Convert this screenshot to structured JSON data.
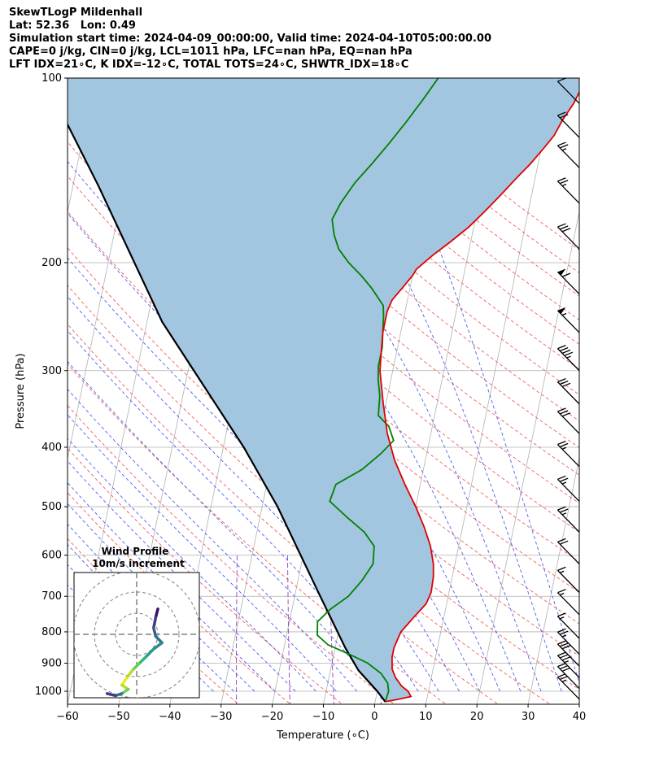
{
  "header": {
    "line1": "SkewTLogP Mildenhall",
    "line2": "Lat: 52.36   Lon: 0.49",
    "line3": "Simulation start time: 2024-04-09_00:00:00, Valid time: 2024-04-10T05:00:00.00",
    "line4": "CAPE=0 j/kg, CIN=0 j/kg, LCL=1011 hPa, LFC=nan hPa, EQ=nan hPa",
    "line5": "LFT IDX=21∘C, K IDX=-12∘C, TOTAL TOTS=24∘C, SHWTR_IDX=18∘C"
  },
  "chart_data": [
    {
      "type": "line",
      "subtype": "skew-t log-p",
      "xlabel": "Temperature (∘C)",
      "ylabel": "Pressure (hPa)",
      "xlim": [
        -60,
        40
      ],
      "ylim": [
        1050,
        100
      ],
      "yscale": "log",
      "xticks": [
        -60,
        -50,
        -40,
        -30,
        -20,
        -10,
        0,
        10,
        20,
        30,
        40
      ],
      "yticks": [
        100,
        200,
        300,
        400,
        500,
        600,
        700,
        800,
        900,
        1000
      ],
      "grid": true,
      "colors": {
        "temperature": "#e00000",
        "dewpoint": "#008000",
        "parcel": "#000000",
        "cin_cape_fill": "#a3c6e0",
        "isotherm": "#b0b0b0",
        "dry_adiabat": "#f06060",
        "moist_adiabat": "#5060ee",
        "mixing_ratio": "#9040c0"
      },
      "series": [
        {
          "role": "temperature",
          "points": [
            [
              2,
              1040
            ],
            [
              4.5,
              1030
            ],
            [
              6.8,
              1020
            ],
            [
              6,
              1000
            ],
            [
              4.5,
              980
            ],
            [
              3,
              950
            ],
            [
              2,
              920
            ],
            [
              1.5,
              880
            ],
            [
              1.5,
              850
            ],
            [
              2.2,
              800
            ],
            [
              4,
              760
            ],
            [
              6,
              720
            ],
            [
              6.5,
              690
            ],
            [
              6.3,
              650
            ],
            [
              5.8,
              620
            ],
            [
              4.5,
              580
            ],
            [
              2.5,
              540
            ],
            [
              0,
              500
            ],
            [
              -3,
              460
            ],
            [
              -6,
              420
            ],
            [
              -8.5,
              380
            ],
            [
              -10.5,
              340
            ],
            [
              -12.5,
              300
            ],
            [
              -13,
              280
            ],
            [
              -13.5,
              260
            ],
            [
              -13.5,
              240
            ],
            [
              -13,
              230
            ],
            [
              -11.5,
              220
            ],
            [
              -10,
              210
            ],
            [
              -9.5,
              205
            ],
            [
              -7,
              195
            ],
            [
              -4,
              185
            ],
            [
              -1,
              175
            ],
            [
              1.5,
              165
            ],
            [
              4,
              155
            ],
            [
              6.5,
              145
            ],
            [
              8.5,
              138
            ],
            [
              10.5,
              130
            ],
            [
              12,
              124
            ],
            [
              13,
              117
            ],
            [
              14.5,
              110
            ],
            [
              15.5,
              103
            ],
            [
              16,
              100
            ]
          ]
        },
        {
          "role": "dewpoint",
          "points": [
            [
              2,
              1035
            ],
            [
              2.2,
              1000
            ],
            [
              1.7,
              970
            ],
            [
              0,
              935
            ],
            [
              -3,
              900
            ],
            [
              -7,
              870
            ],
            [
              -11.5,
              840
            ],
            [
              -14,
              810
            ],
            [
              -14.5,
              770
            ],
            [
              -12.5,
              735
            ],
            [
              -9.5,
              700
            ],
            [
              -7.5,
              660
            ],
            [
              -6,
              620
            ],
            [
              -6.5,
              580
            ],
            [
              -9,
              550
            ],
            [
              -13,
              520
            ],
            [
              -17,
              490
            ],
            [
              -16.5,
              460
            ],
            [
              -12,
              435
            ],
            [
              -9,
              410
            ],
            [
              -7,
              390
            ],
            [
              -8.5,
              370
            ],
            [
              -11,
              355
            ],
            [
              -11.5,
              330
            ],
            [
              -12.5,
              310
            ],
            [
              -13,
              295
            ],
            [
              -13,
              275
            ],
            [
              -13.5,
              260
            ],
            [
              -14,
              245
            ],
            [
              -14.5,
              235
            ],
            [
              -17.5,
              220
            ],
            [
              -20,
              210
            ],
            [
              -23,
              200
            ],
            [
              -25.5,
              190
            ],
            [
              -27,
              180
            ],
            [
              -28,
              170
            ],
            [
              -27,
              160
            ],
            [
              -25,
              148
            ],
            [
              -22.5,
              138
            ],
            [
              -20,
              128
            ],
            [
              -17.5,
              118
            ],
            [
              -15,
              108
            ],
            [
              -13,
              100
            ]
          ]
        },
        {
          "role": "parcel",
          "points": [
            [
              2,
              1040
            ],
            [
              0,
              1000
            ],
            [
              -4.5,
              925
            ],
            [
              -8,
              850
            ],
            [
              -15,
              700
            ],
            [
              -27,
              500
            ],
            [
              -36,
              400
            ],
            [
              -57,
              250
            ],
            [
              -75,
              150
            ],
            [
              -90,
              100
            ]
          ]
        }
      ],
      "wind_barbs": [
        {
          "p": 1030,
          "speed_kt": 25
        },
        {
          "p": 990,
          "speed_kt": 30
        },
        {
          "p": 950,
          "speed_kt": 35
        },
        {
          "p": 910,
          "speed_kt": 30
        },
        {
          "p": 870,
          "speed_kt": 25
        },
        {
          "p": 820,
          "speed_kt": 15
        },
        {
          "p": 750,
          "speed_kt": 15
        },
        {
          "p": 690,
          "speed_kt": 15
        },
        {
          "p": 620,
          "speed_kt": 20
        },
        {
          "p": 550,
          "speed_kt": 25
        },
        {
          "p": 490,
          "speed_kt": 25
        },
        {
          "p": 430,
          "speed_kt": 25
        },
        {
          "p": 380,
          "speed_kt": 30
        },
        {
          "p": 340,
          "speed_kt": 30
        },
        {
          "p": 300,
          "speed_kt": 45
        },
        {
          "p": 260,
          "speed_kt": 55
        },
        {
          "p": 225,
          "speed_kt": 60
        },
        {
          "p": 190,
          "speed_kt": 30
        },
        {
          "p": 160,
          "speed_kt": 25
        },
        {
          "p": 140,
          "speed_kt": 25
        },
        {
          "p": 125,
          "speed_kt": 20
        },
        {
          "p": 110,
          "speed_kt": 10
        }
      ]
    },
    {
      "type": "line",
      "subtype": "hodograph",
      "title": "Wind Profile",
      "subtitle": "10m/s increment",
      "rings_ms": [
        10,
        20,
        30
      ],
      "points": [
        [
          10,
          -12
        ],
        [
          9,
          -8
        ],
        [
          8,
          -3
        ],
        [
          9,
          1
        ],
        [
          12,
          4
        ],
        [
          8,
          7
        ],
        [
          4,
          11
        ],
        [
          1,
          14
        ],
        [
          -2,
          17
        ],
        [
          -5,
          21
        ],
        [
          -7,
          24
        ],
        [
          -4,
          26
        ],
        [
          -7,
          28
        ],
        [
          -10,
          29
        ],
        [
          -14,
          28
        ]
      ]
    }
  ]
}
